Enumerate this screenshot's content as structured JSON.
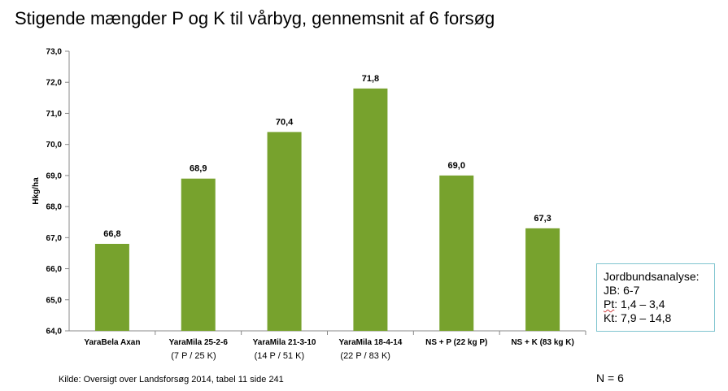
{
  "title": "Stigende mængder P og K til vårbyg, gennemsnit af 6 forsøg",
  "chart_data": {
    "type": "bar",
    "ylabel": "Hkg/ha",
    "ylim": [
      64.0,
      73.0
    ],
    "ytick_step": 1.0,
    "ytick_labels": [
      "64,0",
      "65,0",
      "66,0",
      "67,0",
      "68,0",
      "69,0",
      "70,0",
      "71,0",
      "72,0",
      "73,0"
    ],
    "categories": [
      "YaraBela Axan",
      "YaraMila 25-2-6",
      "YaraMila 21-3-10",
      "YaraMila 18-4-14",
      "NS + P (22 kg P)",
      "NS + K (83 kg K)"
    ],
    "sub_labels": [
      "",
      "(7 P /  25 K)",
      "(14  P / 51 K)",
      "(22 P /  83 K)",
      "",
      ""
    ],
    "values": [
      66.8,
      68.9,
      70.4,
      71.8,
      69.0,
      67.3
    ],
    "value_labels": [
      "66,8",
      "68,9",
      "70,4",
      "71,8",
      "69,0",
      "67,3"
    ],
    "bar_color": "#77a22d",
    "grid": false
  },
  "soil_box": {
    "heading": "Jordbundsanalyse:",
    "lines": [
      {
        "prefix": "JB",
        "rest": ": 6-7"
      },
      {
        "prefix": "Pt",
        "rest": ": 1,4 – 3,4"
      },
      {
        "prefix": "Kt",
        "rest": ": 7,9 – 14,8"
      }
    ]
  },
  "note_n": "N = 6",
  "source": "Kilde: Oversigt over Landsforsøg 2014, tabel 11 side 241"
}
